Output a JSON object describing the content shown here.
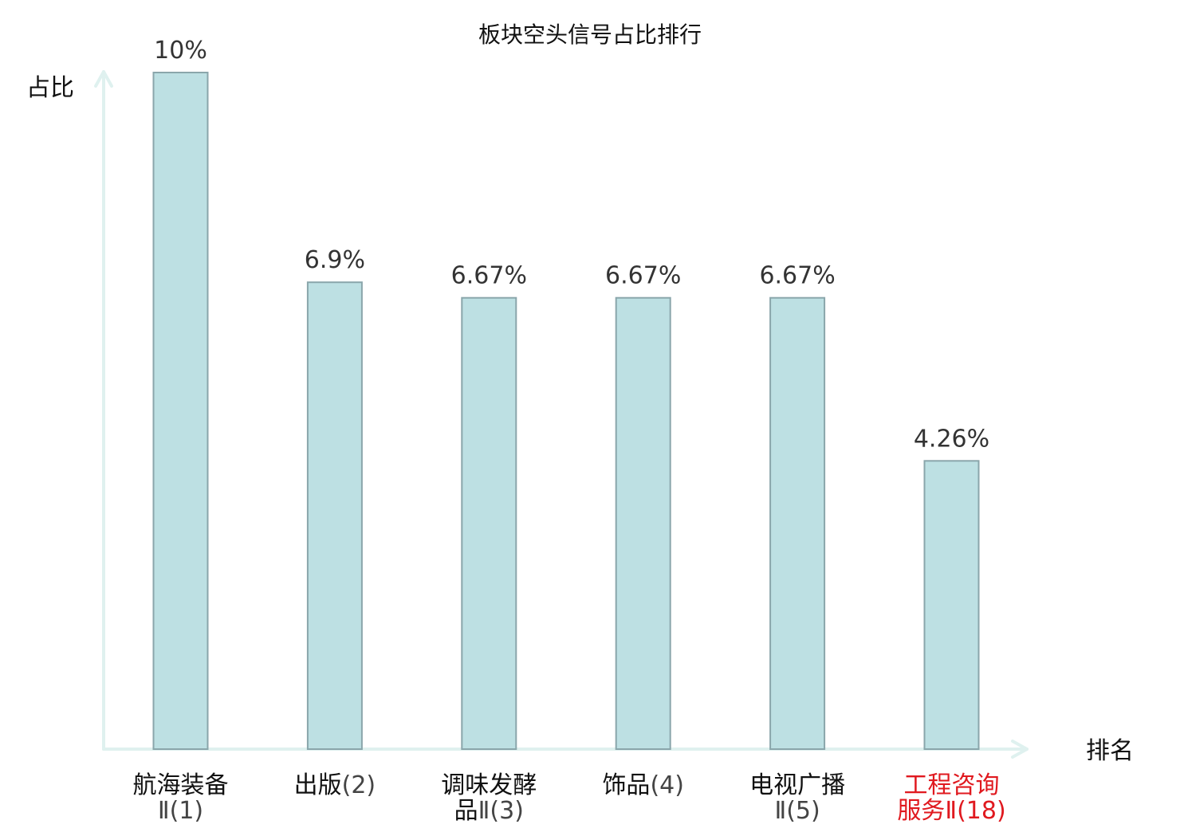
{
  "chart_data": {
    "type": "bar",
    "title": "板块空头信号占比排行",
    "ylabel": "占比",
    "xlabel": "排名",
    "ylim": [
      0,
      10
    ],
    "grid": false,
    "legend": "none",
    "categories": [
      {
        "name_lines": [
          "航海装备"
        ],
        "rank_prefix": "",
        "rank_line": "Ⅱ(1)",
        "value_label": "10%",
        "highlight": false
      },
      {
        "name_lines": [],
        "rank_prefix": "出版",
        "rank_line": "(2)",
        "value_label": "6.9%",
        "highlight": false
      },
      {
        "name_lines": [
          "调味发酵"
        ],
        "rank_prefix": "品",
        "rank_line": "Ⅱ(3)",
        "value_label": "6.67%",
        "highlight": false
      },
      {
        "name_lines": [],
        "rank_prefix": "饰品",
        "rank_line": "(4)",
        "value_label": "6.67%",
        "highlight": false
      },
      {
        "name_lines": [
          "电视广播"
        ],
        "rank_prefix": "",
        "rank_line": "Ⅱ(5)",
        "value_label": "6.67%",
        "highlight": false
      },
      {
        "name_lines": [
          "工程咨询"
        ],
        "rank_prefix": "服务",
        "rank_line": "Ⅱ(18)",
        "value_label": "4.26%",
        "highlight": true
      }
    ],
    "values": [
      10,
      6.9,
      6.67,
      6.67,
      6.67,
      4.26
    ],
    "colors": {
      "bar_fill": "#bde0e3",
      "bar_stroke": "#8aa6ab",
      "axis": "#dff1ef",
      "label_normal": "#111111",
      "rank_normal": "#444444",
      "label_highlight": "#e0191f"
    }
  }
}
